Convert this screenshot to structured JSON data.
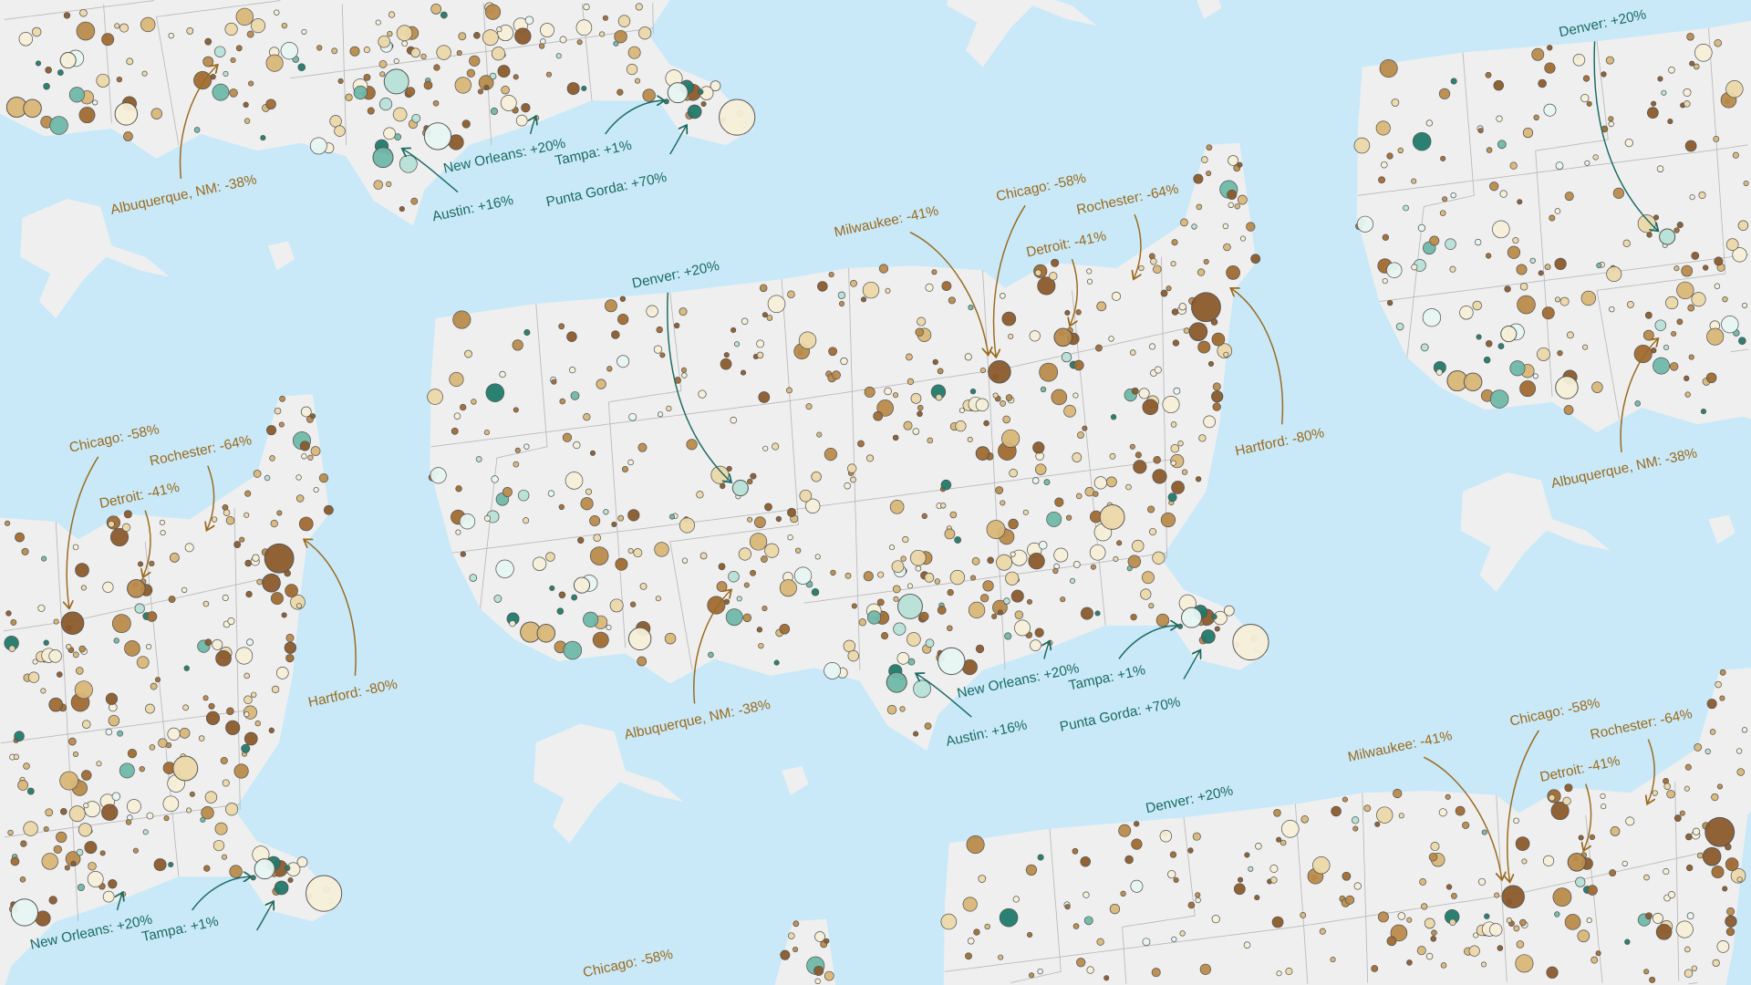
{
  "map": {
    "colors": {
      "ocean": "#c9e9f8",
      "land": "#efefef",
      "decline": "#8a5a2b",
      "decline_light": "#e9d3a0",
      "growth": "#1f7a6a",
      "growth_light": "#dff3ef",
      "decline_label": "#9a6a1e",
      "growth_label": "#1b6b63"
    },
    "annotations": [
      {
        "text": "Denver: +20%",
        "trend": "growth"
      },
      {
        "text": "Milwaukee: -41%",
        "trend": "decline"
      },
      {
        "text": "Chicago: -58%",
        "trend": "decline"
      },
      {
        "text": "Detroit: -41%",
        "trend": "decline"
      },
      {
        "text": "Rochester: -64%",
        "trend": "decline"
      },
      {
        "text": "Hartford: -80%",
        "trend": "decline"
      },
      {
        "text": "Albuquerque, NM: -38%",
        "trend": "decline"
      },
      {
        "text": "Austin: +16%",
        "trend": "growth"
      },
      {
        "text": "New Orleans: +20%",
        "trend": "growth"
      },
      {
        "text": "Tampa: +1%",
        "trend": "growth"
      },
      {
        "text": "Punta Gorda: +70%",
        "trend": "growth"
      }
    ]
  }
}
